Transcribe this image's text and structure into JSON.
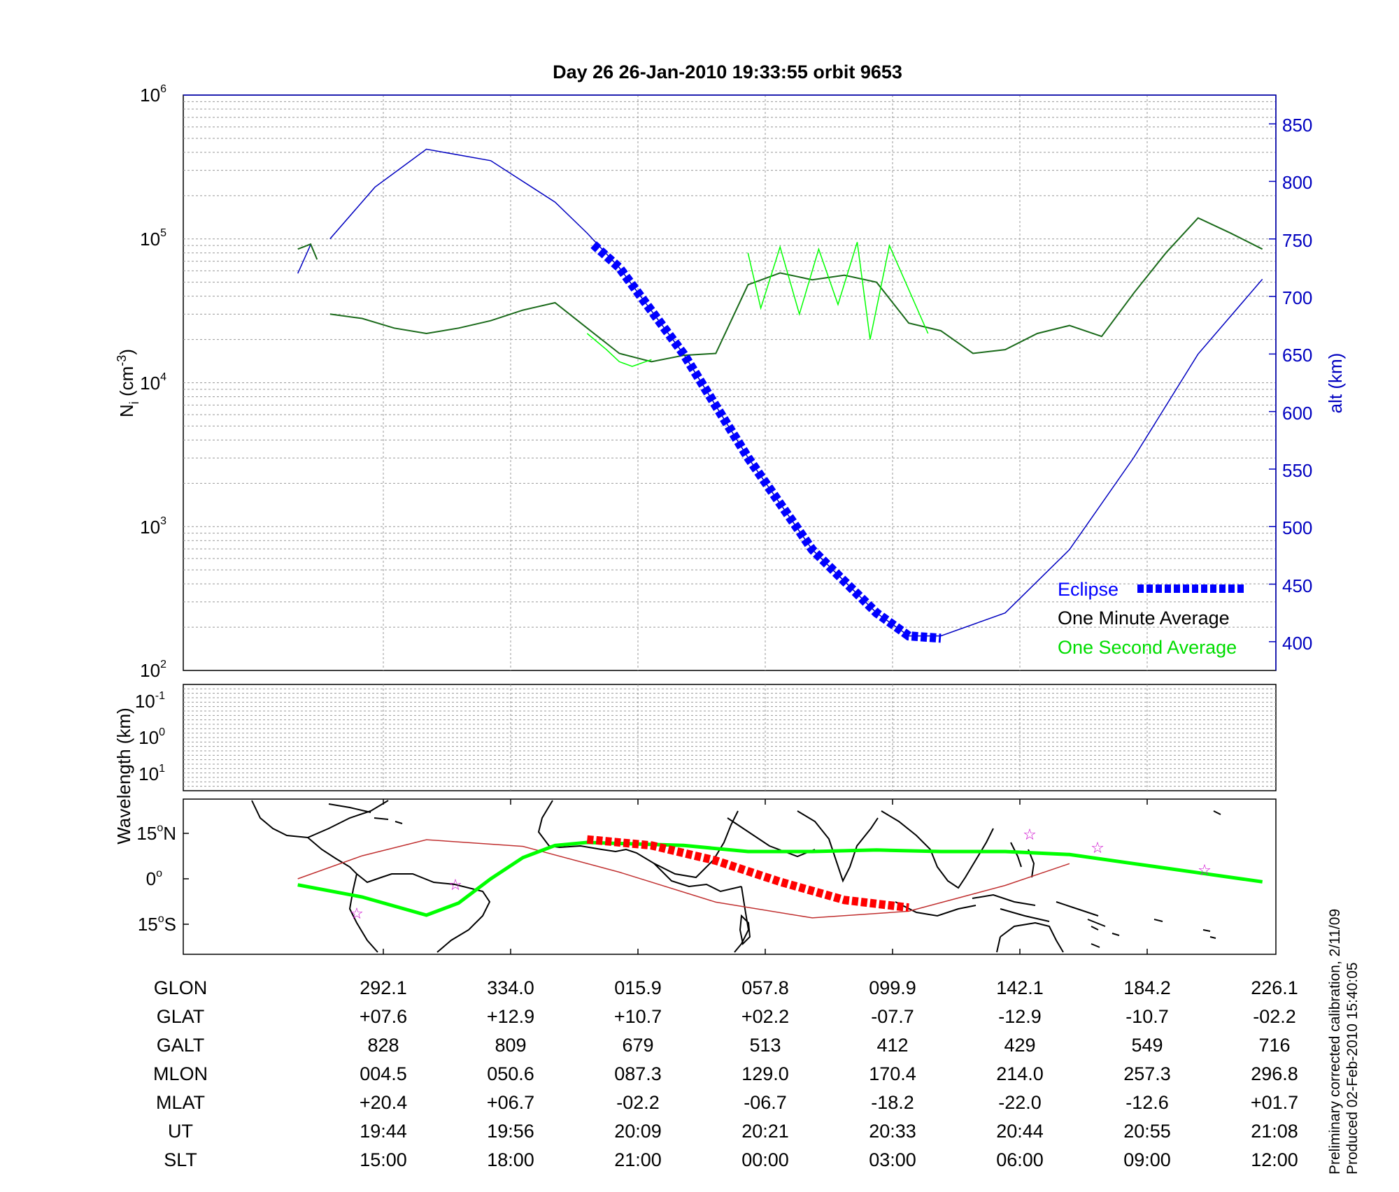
{
  "title": "Day 26  26-Jan-2010 19:33:55   orbit 9653",
  "top_panel": {
    "ylabel_base": "N",
    "ylabel_sub": "i",
    "ylabel_unit_pre": " (cm",
    "ylabel_unit_sup": "-3",
    "ylabel_unit_post": ")",
    "y2label": "alt (km)",
    "y_tick_bases": [
      "10",
      "10",
      "10",
      "10",
      "10"
    ],
    "y_tick_exps": [
      "6",
      "5",
      "4",
      "3",
      "2"
    ],
    "y2_ticks": [
      "850",
      "800",
      "750",
      "700",
      "650",
      "600",
      "550",
      "500",
      "450",
      "400"
    ]
  },
  "mid_panel": {
    "ylabel": "Wavelength (km)",
    "y_tick_bases": [
      "10",
      "10",
      "10"
    ],
    "y_tick_exps": [
      "-1",
      "0",
      "1"
    ]
  },
  "map_panel": {
    "lat_labels": [
      {
        "num": "15",
        "deg": "o",
        "hem": "N"
      },
      {
        "num": "0",
        "deg": "o",
        "hem": ""
      },
      {
        "num": "15",
        "deg": "o",
        "hem": "S"
      }
    ]
  },
  "legend": {
    "eclipse": "Eclipse",
    "minute": "One Minute Average",
    "second": "One Second Average",
    "colors": {
      "eclipse": "#0000ff",
      "minute": "#000000",
      "second": "#00ff00"
    }
  },
  "table": {
    "row_labels": [
      "GLON",
      "GLAT",
      "GALT",
      "MLON",
      "MLAT",
      "UT",
      "SLT"
    ],
    "rows": [
      [
        "292.1",
        "334.0",
        "015.9",
        "057.8",
        "099.9",
        "142.1",
        "184.2",
        "226.1"
      ],
      [
        "+07.6",
        "+12.9",
        "+10.7",
        "+02.2",
        "-07.7",
        "-12.9",
        "-10.7",
        "-02.2"
      ],
      [
        "828",
        "809",
        "679",
        "513",
        "412",
        "429",
        "549",
        "716"
      ],
      [
        "004.5",
        "050.6",
        "087.3",
        "129.0",
        "170.4",
        "214.0",
        "257.3",
        "296.8"
      ],
      [
        "+20.4",
        "+06.7",
        "-02.2",
        "-06.7",
        "-18.2",
        "-22.0",
        "-12.6",
        "+01.7"
      ],
      [
        "19:44",
        "19:56",
        "20:09",
        "20:21",
        "20:33",
        "20:44",
        "20:55",
        "21:08"
      ],
      [
        "15:00",
        "18:00",
        "21:00",
        "00:00",
        "03:00",
        "06:00",
        "09:00",
        "12:00"
      ]
    ]
  },
  "footnote": {
    "line1": "Preliminary corrected calibration, 2/11/09",
    "line2": "Produced 02-Feb-2010 15:40:05"
  },
  "chart_data": [
    {
      "type": "line",
      "scale": "log",
      "ylim": [
        100,
        1000000
      ],
      "y2lim": [
        375,
        875
      ],
      "grid": true,
      "legend": "bottom-right",
      "x": [
        "19:33:55",
        "19:44",
        "19:56",
        "20:09",
        "20:21",
        "20:33",
        "20:44",
        "20:55",
        "21:08"
      ],
      "series": [
        {
          "name": "One Minute Average",
          "axis": "left",
          "color": "#000000",
          "values": [
            [
              19.6,
              85000
            ],
            [
              19.62,
              92000
            ],
            [
              19.63,
              72000
            ],
            [
              19.65,
              30000
            ],
            [
              19.7,
              28000
            ],
            [
              19.75,
              24000
            ],
            [
              19.8,
              22000
            ],
            [
              19.85,
              24000
            ],
            [
              19.9,
              27000
            ],
            [
              19.95,
              32000
            ],
            [
              20.0,
              36000
            ],
            [
              20.05,
              24000
            ],
            [
              20.1,
              16000
            ],
            [
              20.15,
              14000
            ],
            [
              20.2,
              15500
            ],
            [
              20.25,
              16000
            ],
            [
              20.3,
              48000
            ],
            [
              20.35,
              58000
            ],
            [
              20.4,
              52000
            ],
            [
              20.45,
              56000
            ],
            [
              20.5,
              50000
            ],
            [
              20.55,
              26000
            ],
            [
              20.6,
              23000
            ],
            [
              20.65,
              16000
            ],
            [
              20.7,
              17000
            ],
            [
              20.75,
              22000
            ],
            [
              20.8,
              25000
            ],
            [
              20.85,
              21000
            ],
            [
              20.9,
              42000
            ],
            [
              20.95,
              80000
            ],
            [
              21.0,
              140000
            ],
            [
              21.05,
              110000
            ],
            [
              21.1,
              85000
            ]
          ]
        },
        {
          "name": "One Second Average",
          "axis": "left",
          "color": "#00ff00",
          "values": [
            [
              20.05,
              22000
            ],
            [
              20.08,
              17000
            ],
            [
              20.1,
              14000
            ],
            [
              20.12,
              13000
            ],
            [
              20.15,
              14500
            ],
            [
              20.3,
              80000
            ],
            [
              20.32,
              33000
            ],
            [
              20.35,
              88000
            ],
            [
              20.38,
              30000
            ],
            [
              20.41,
              85000
            ],
            [
              20.44,
              35000
            ],
            [
              20.47,
              95000
            ],
            [
              20.49,
              20000
            ],
            [
              20.52,
              90000
            ],
            [
              20.58,
              22000
            ]
          ]
        },
        {
          "name": "alt (km)",
          "axis": "right",
          "color": "#0000c0",
          "values": [
            [
              19.6,
              720
            ],
            [
              19.62,
              745
            ],
            [
              19.65,
              750
            ],
            [
              19.72,
              795
            ],
            [
              19.8,
              828
            ],
            [
              19.9,
              818
            ],
            [
              20.0,
              782
            ],
            [
              20.05,
              755
            ],
            [
              20.1,
              725
            ],
            [
              20.2,
              650
            ],
            [
              20.3,
              560
            ],
            [
              20.4,
              480
            ],
            [
              20.5,
              425
            ],
            [
              20.55,
              405
            ],
            [
              20.6,
              405
            ],
            [
              20.7,
              425
            ],
            [
              20.8,
              480
            ],
            [
              20.9,
              560
            ],
            [
              21.0,
              650
            ],
            [
              21.1,
              715
            ]
          ]
        },
        {
          "name": "Eclipse",
          "axis": "right",
          "color": "#0000ff",
          "values": [
            [
              20.06,
              745
            ],
            [
              20.1,
              725
            ],
            [
              20.2,
              650
            ],
            [
              20.3,
              560
            ],
            [
              20.4,
              480
            ],
            [
              20.5,
              425
            ],
            [
              20.55,
              405
            ],
            [
              20.6,
              403
            ]
          ]
        }
      ]
    },
    {
      "type": "line",
      "scale": "log",
      "xlabel": "",
      "ylabel": "Wavelength (km)",
      "grid": true,
      "series": []
    },
    {
      "type": "line",
      "ylim": [
        -20,
        20
      ],
      "series": [
        {
          "name": "MLAT path",
          "color": "#00ff00",
          "values": [
            [
              19.6,
              -2
            ],
            [
              19.7,
              -6
            ],
            [
              19.8,
              -12
            ],
            [
              19.85,
              -8
            ],
            [
              19.9,
              0
            ],
            [
              19.95,
              7
            ],
            [
              20.0,
              11
            ],
            [
              20.05,
              12
            ],
            [
              20.2,
              11
            ],
            [
              20.3,
              9
            ],
            [
              20.4,
              9
            ],
            [
              20.5,
              9.5
            ],
            [
              20.6,
              9
            ],
            [
              20.7,
              9
            ],
            [
              20.8,
              8
            ],
            [
              20.9,
              5
            ],
            [
              21.0,
              2
            ],
            [
              21.1,
              -1
            ]
          ]
        },
        {
          "name": "GLAT path",
          "color": "#c03030",
          "values": [
            [
              19.6,
              0
            ],
            [
              19.7,
              7.6
            ],
            [
              19.8,
              12.9
            ],
            [
              19.95,
              10.7
            ],
            [
              20.1,
              2.2
            ],
            [
              20.25,
              -7.7
            ],
            [
              20.4,
              -12.9
            ],
            [
              20.55,
              -10.7
            ],
            [
              20.7,
              -2.2
            ],
            [
              20.8,
              5
            ]
          ]
        },
        {
          "name": "Eclipse",
          "color": "#ff0000",
          "values": [
            [
              20.05,
              13
            ],
            [
              20.15,
              11
            ],
            [
              20.25,
              6
            ],
            [
              20.35,
              -1
            ],
            [
              20.45,
              -7
            ],
            [
              20.55,
              -9.5
            ]
          ]
        }
      ]
    }
  ]
}
